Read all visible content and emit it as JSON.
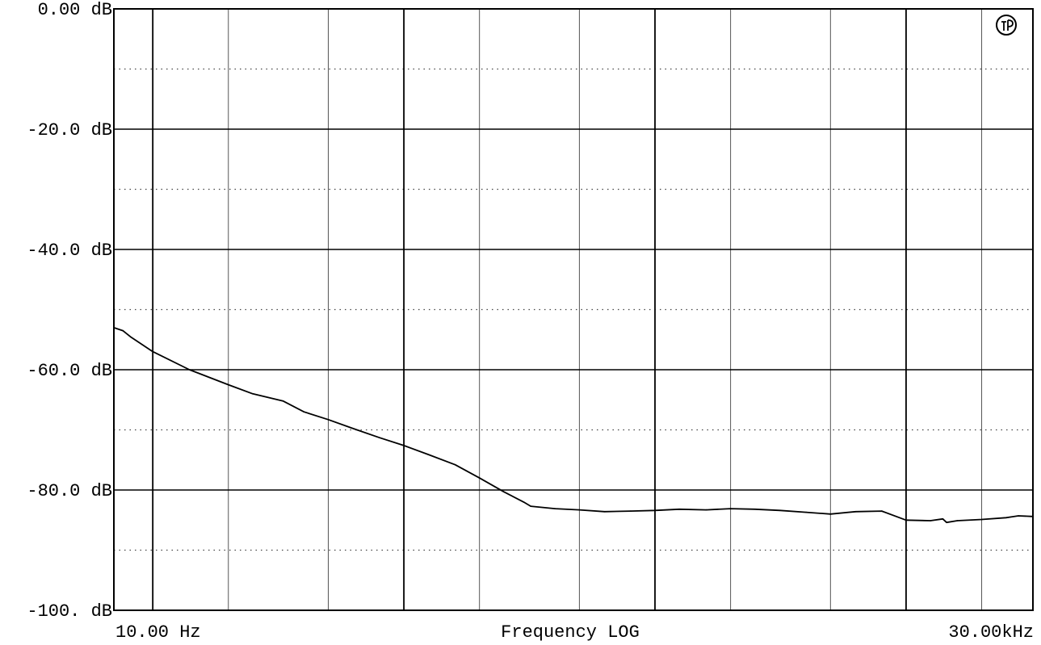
{
  "chart_data": {
    "type": "line",
    "xscale": "log",
    "xlim": [
      7,
      32000
    ],
    "ylim": [
      -100,
      0
    ],
    "y_tick_values": [
      0,
      -20,
      -40,
      -60,
      -80,
      -100
    ],
    "y_tick_labels": [
      "0.00 dB",
      "-20.0 dB",
      "-40.0 dB",
      "-60.0 dB",
      "-80.0 dB",
      "-100. dB"
    ],
    "y_minor_values": [
      -10,
      -30,
      -50,
      -70,
      -90
    ],
    "x_major_values": [
      10,
      100,
      1000,
      10000
    ],
    "x_minor_values": [
      20,
      50,
      200,
      500,
      2000,
      5000,
      20000
    ],
    "x_start_label": "10.00 Hz",
    "x_end_label": "30.00kHz",
    "xlabel": "Frequency LOG",
    "grid": true,
    "series": [
      {
        "color": "#000000",
        "x": [
          7,
          7.6,
          8.2,
          10,
          14,
          20,
          25,
          33,
          40,
          50,
          63,
          80,
          100,
          125,
          160,
          200,
          250,
          300,
          320,
          400,
          500,
          630,
          800,
          1000,
          1250,
          1600,
          2000,
          2500,
          3150,
          4000,
          5000,
          6300,
          8000,
          10000,
          12500,
          14000,
          14500,
          16000,
          20000,
          25000,
          26000,
          28000,
          32000
        ],
        "y": [
          -53,
          -53.5,
          -54.6,
          -57,
          -60,
          -62.5,
          -64,
          -65.2,
          -67,
          -68.3,
          -69.8,
          -71.3,
          -72.6,
          -74.1,
          -75.8,
          -78,
          -80.3,
          -82,
          -82.7,
          -83.1,
          -83.3,
          -83.6,
          -83.5,
          -83.4,
          -83.2,
          -83.3,
          -83.1,
          -83.2,
          -83.4,
          -83.7,
          -84,
          -83.6,
          -83.5,
          -85,
          -85.1,
          -84.8,
          -85.4,
          -85.1,
          -84.9,
          -84.6,
          -84.5,
          -84.3,
          -84.4
        ]
      }
    ]
  },
  "logo": {
    "icon": "ap-logo-icon"
  }
}
